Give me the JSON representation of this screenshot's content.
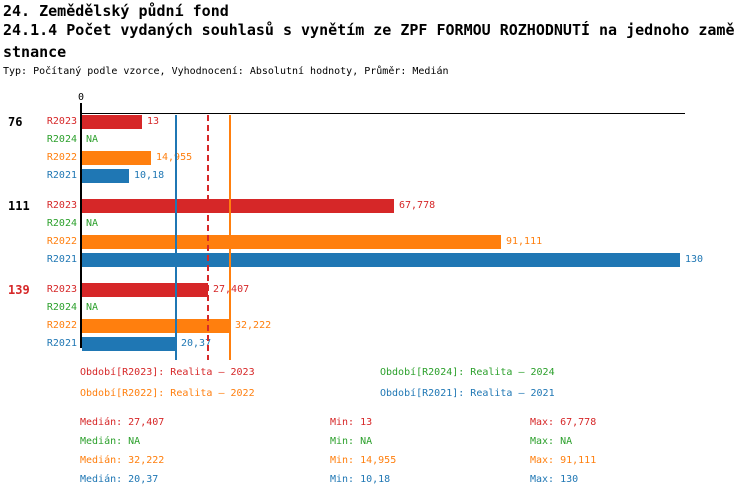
{
  "header": {
    "title": "24. Zemědělský půdní fond",
    "subtitle_line1": "24.1.4 Počet vydaných souhlasů s vynětím ze ZPF FORMOU ROZHODNUTÍ na jednoho zamě",
    "subtitle_line2": "stnance",
    "meta": "Typ: Počítaný podle vzorce, Vyhodnocení: Absolutní hodnoty, Průměr: Medián"
  },
  "chart_data": {
    "type": "bar",
    "orientation": "horizontal",
    "axis": {
      "zero_label": "0",
      "x_min": 0,
      "x_max": 131
    },
    "series": [
      {
        "id": "R2023",
        "label": "R2023",
        "color": "#d62728",
        "legend_label": "Období[R2023]: Realita – 2023"
      },
      {
        "id": "R2024",
        "label": "R2024",
        "color": "#2ca02c",
        "legend_label": "Období[R2024]: Realita – 2024"
      },
      {
        "id": "R2022",
        "label": "R2022",
        "color": "#ff7f0e",
        "legend_label": "Období[R2022]: Realita – 2022"
      },
      {
        "id": "R2021",
        "label": "R2021",
        "color": "#1f77b4",
        "legend_label": "Období[R2021]: Realita – 2021"
      }
    ],
    "groups": [
      {
        "label": "76",
        "label_color": "#000000",
        "values": [
          {
            "series": "R2023",
            "value": 13,
            "display": "13"
          },
          {
            "series": "R2024",
            "value": null,
            "display": "NA"
          },
          {
            "series": "R2022",
            "value": 14.955,
            "display": "14,955"
          },
          {
            "series": "R2021",
            "value": 10.18,
            "display": "10,18"
          }
        ]
      },
      {
        "label": "111",
        "label_color": "#000000",
        "values": [
          {
            "series": "R2023",
            "value": 67.778,
            "display": "67,778"
          },
          {
            "series": "R2024",
            "value": null,
            "display": "NA"
          },
          {
            "series": "R2022",
            "value": 91.111,
            "display": "91,111"
          },
          {
            "series": "R2021",
            "value": 130,
            "display": "130"
          }
        ]
      },
      {
        "label": "139",
        "label_color": "#d62728",
        "values": [
          {
            "series": "R2023",
            "value": 27.407,
            "display": "27,407"
          },
          {
            "series": "R2024",
            "value": null,
            "display": "NA"
          },
          {
            "series": "R2022",
            "value": 32.222,
            "display": "32,222"
          },
          {
            "series": "R2021",
            "value": 20.37,
            "display": "20,37"
          }
        ]
      }
    ],
    "median_lines": [
      {
        "series": "R2021",
        "value": 20.37,
        "color": "#1f77b4",
        "line_style": "solid"
      },
      {
        "series": "R2023",
        "value": 27.407,
        "color": "#d62728",
        "line_style": "dashed"
      },
      {
        "series": "R2022",
        "value": 32.222,
        "color": "#ff7f0e",
        "line_style": "solid"
      }
    ],
    "stats_labels": {
      "median": "Medián",
      "min": "Min",
      "max": "Max"
    },
    "stats": [
      {
        "series": "R2023",
        "color": "#d62728",
        "median": "27,407",
        "min": "13",
        "max": "67,778"
      },
      {
        "series": "R2024",
        "color": "#2ca02c",
        "median": "NA",
        "min": "NA",
        "max": "NA"
      },
      {
        "series": "R2022",
        "color": "#ff7f0e",
        "median": "32,222",
        "min": "14,955",
        "max": "91,111"
      },
      {
        "series": "R2021",
        "color": "#1f77b4",
        "median": "20,37",
        "min": "10,18",
        "max": "130"
      }
    ]
  }
}
